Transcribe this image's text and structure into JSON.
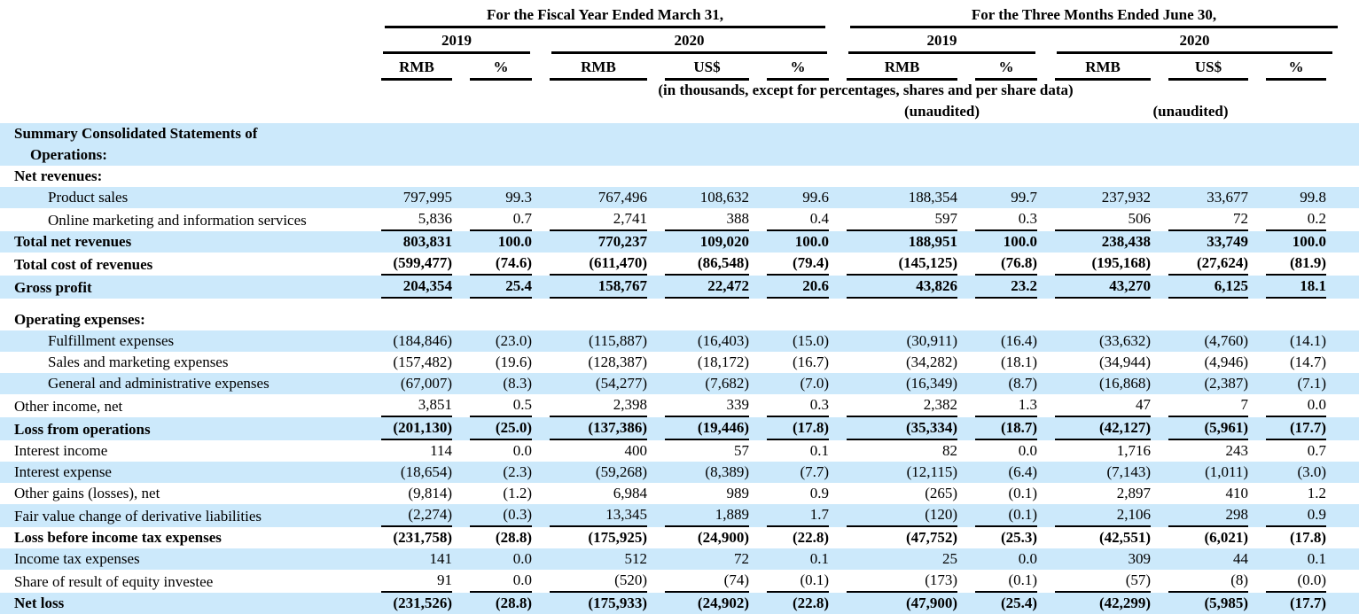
{
  "colors": {
    "stripe_blue": "#cce9fb",
    "text": "#000000",
    "rule": "#000000"
  },
  "table": {
    "header": {
      "group_fiscal": "For the Fiscal Year Ended March 31,",
      "group_quarter": "For the Three Months Ended June 30,",
      "fy_years": [
        "2019",
        "2020"
      ],
      "q_years": [
        "2019",
        "2020"
      ],
      "col_labels": [
        "RMB",
        "%",
        "RMB",
        "US$",
        "%",
        "RMB",
        "%",
        "RMB",
        "US$",
        "%"
      ],
      "note": "(in thousands, except for percentages, shares and per share data)",
      "unaudited": "(unaudited)"
    },
    "rows": [
      {
        "label": "Summary Consolidated Statements of",
        "label2": "Operations:",
        "indent": 0,
        "bold": true,
        "stripe": true,
        "underline": false,
        "values": [
          "",
          "",
          "",
          "",
          "",
          "",
          "",
          "",
          "",
          ""
        ]
      },
      {
        "label": "Net revenues:",
        "indent": 0,
        "bold": true,
        "stripe": false,
        "underline": false,
        "values": [
          "",
          "",
          "",
          "",
          "",
          "",
          "",
          "",
          "",
          ""
        ]
      },
      {
        "label": "Product sales",
        "indent": 1,
        "bold": false,
        "stripe": true,
        "underline": false,
        "values": [
          "797,995",
          "99.3",
          "767,496",
          "108,632",
          "99.6",
          "188,354",
          "99.7",
          "237,932",
          "33,677",
          "99.8"
        ]
      },
      {
        "label": "Online marketing and information services",
        "indent": 1,
        "bold": false,
        "stripe": false,
        "underline": true,
        "values": [
          "5,836",
          "0.7",
          "2,741",
          "388",
          "0.4",
          "597",
          "0.3",
          "506",
          "72",
          "0.2"
        ]
      },
      {
        "label": "Total net revenues",
        "indent": 0,
        "bold": true,
        "stripe": true,
        "underline": false,
        "values": [
          "803,831",
          "100.0",
          "770,237",
          "109,020",
          "100.0",
          "188,951",
          "100.0",
          "238,438",
          "33,749",
          "100.0"
        ]
      },
      {
        "label": "Total cost of revenues",
        "indent": 0,
        "bold": true,
        "stripe": false,
        "underline": true,
        "values": [
          "(599,477)",
          "(74.6)",
          "(611,470)",
          "(86,548)",
          "(79.4)",
          "(145,125)",
          "(76.8)",
          "(195,168)",
          "(27,624)",
          "(81.9)"
        ]
      },
      {
        "label": "Gross profit",
        "indent": 0,
        "bold": true,
        "stripe": true,
        "underline": true,
        "values": [
          "204,354",
          "25.4",
          "158,767",
          "22,472",
          "20.6",
          "43,826",
          "23.2",
          "43,270",
          "6,125",
          "18.1"
        ]
      },
      {
        "label": "Operating expenses:",
        "indent": 0,
        "bold": true,
        "stripe": false,
        "underline": false,
        "gap_top": true,
        "values": [
          "",
          "",
          "",
          "",
          "",
          "",
          "",
          "",
          "",
          ""
        ]
      },
      {
        "label": "Fulfillment expenses",
        "indent": 1,
        "bold": false,
        "stripe": true,
        "underline": false,
        "values": [
          "(184,846)",
          "(23.0)",
          "(115,887)",
          "(16,403)",
          "(15.0)",
          "(30,911)",
          "(16.4)",
          "(33,632)",
          "(4,760)",
          "(14.1)"
        ]
      },
      {
        "label": "Sales and marketing expenses",
        "indent": 1,
        "bold": false,
        "stripe": false,
        "underline": false,
        "values": [
          "(157,482)",
          "(19.6)",
          "(128,387)",
          "(18,172)",
          "(16.7)",
          "(34,282)",
          "(18.1)",
          "(34,944)",
          "(4,946)",
          "(14.7)"
        ]
      },
      {
        "label": "General and administrative expenses",
        "indent": 1,
        "bold": false,
        "stripe": true,
        "underline": false,
        "values": [
          "(67,007)",
          "(8.3)",
          "(54,277)",
          "(7,682)",
          "(7.0)",
          "(16,349)",
          "(8.7)",
          "(16,868)",
          "(2,387)",
          "(7.1)"
        ]
      },
      {
        "label": "Other income, net",
        "indent": 0,
        "bold": false,
        "stripe": false,
        "underline": true,
        "values": [
          "3,851",
          "0.5",
          "2,398",
          "339",
          "0.3",
          "2,382",
          "1.3",
          "47",
          "7",
          "0.0"
        ]
      },
      {
        "label": "Loss from operations",
        "indent": 0,
        "bold": true,
        "stripe": true,
        "underline": true,
        "values": [
          "(201,130)",
          "(25.0)",
          "(137,386)",
          "(19,446)",
          "(17.8)",
          "(35,334)",
          "(18.7)",
          "(42,127)",
          "(5,961)",
          "(17.7)"
        ]
      },
      {
        "label": "Interest income",
        "indent": 0,
        "bold": false,
        "stripe": false,
        "underline": false,
        "values": [
          "114",
          "0.0",
          "400",
          "57",
          "0.1",
          "82",
          "0.0",
          "1,716",
          "243",
          "0.7"
        ]
      },
      {
        "label": "Interest expense",
        "indent": 0,
        "bold": false,
        "stripe": true,
        "underline": false,
        "values": [
          "(18,654)",
          "(2.3)",
          "(59,268)",
          "(8,389)",
          "(7.7)",
          "(12,115)",
          "(6.4)",
          "(7,143)",
          "(1,011)",
          "(3.0)"
        ]
      },
      {
        "label": "Other gains (losses), net",
        "indent": 0,
        "bold": false,
        "stripe": false,
        "underline": false,
        "values": [
          "(9,814)",
          "(1.2)",
          "6,984",
          "989",
          "0.9",
          "(265)",
          "(0.1)",
          "2,897",
          "410",
          "1.2"
        ]
      },
      {
        "label": "Fair value change of derivative liabilities",
        "indent": 0,
        "bold": false,
        "stripe": true,
        "underline": true,
        "values": [
          "(2,274)",
          "(0.3)",
          "13,345",
          "1,889",
          "1.7",
          "(120)",
          "(0.1)",
          "2,106",
          "298",
          "0.9"
        ]
      },
      {
        "label": "Loss before income tax expenses",
        "indent": 0,
        "bold": true,
        "stripe": false,
        "underline": false,
        "values": [
          "(231,758)",
          "(28.8)",
          "(175,925)",
          "(24,900)",
          "(22.8)",
          "(47,752)",
          "(25.3)",
          "(42,551)",
          "(6,021)",
          "(17.8)"
        ]
      },
      {
        "label": "Income tax expenses",
        "indent": 0,
        "bold": false,
        "stripe": true,
        "underline": false,
        "values": [
          "141",
          "0.0",
          "512",
          "72",
          "0.1",
          "25",
          "0.0",
          "309",
          "44",
          "0.1"
        ]
      },
      {
        "label": "Share of result of equity investee",
        "indent": 0,
        "bold": false,
        "stripe": false,
        "underline": true,
        "values": [
          "91",
          "0.0",
          "(520)",
          "(74)",
          "(0.1)",
          "(173)",
          "(0.1)",
          "(57)",
          "(8)",
          "(0.0)"
        ]
      },
      {
        "label": "Net loss",
        "indent": 0,
        "bold": true,
        "stripe": true,
        "underline": false,
        "values": [
          "(231,526)",
          "(28.8)",
          "(175,933)",
          "(24,902)",
          "(22.8)",
          "(47,900)",
          "(25.4)",
          "(42,299)",
          "(5,985)",
          "(17.7)"
        ]
      }
    ]
  }
}
